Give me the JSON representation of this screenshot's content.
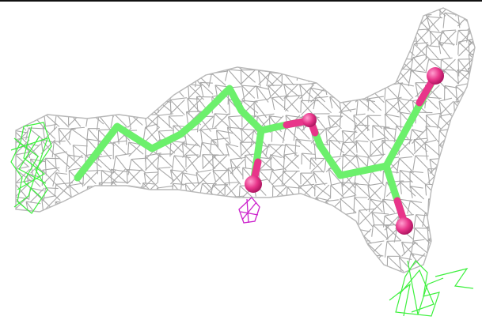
{
  "scene": {
    "kind": "electron-density-mesh-with-ligand-stick-model",
    "colors": {
      "background": "#ffffff",
      "frame_rule": "#111111",
      "density_mesh": "#a8a8a8",
      "carbon": "#6cf06c",
      "oxygen": "#e8358a",
      "positive_difference_mesh": "#3ef03e",
      "negative_difference_mesh": "#cc22cc"
    },
    "atoms": {
      "carbon_count": 11,
      "oxygen_count": 4
    }
  }
}
